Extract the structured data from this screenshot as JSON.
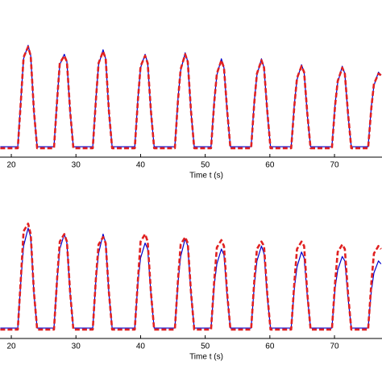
{
  "chart_data": [
    {
      "type": "line",
      "xlabel": "Time t (s)",
      "x": [
        18.3,
        21.0,
        21.5,
        21.9,
        22.6,
        23.0,
        23.5,
        24.0,
        26.6,
        27.1,
        27.5,
        28.2,
        28.6,
        29.1,
        29.6,
        32.6,
        33.1,
        33.5,
        34.2,
        34.6,
        35.1,
        35.6,
        39.1,
        39.6,
        40.0,
        40.7,
        41.1,
        41.6,
        42.1,
        45.3,
        45.8,
        46.2,
        46.9,
        47.3,
        47.8,
        48.3,
        50.9,
        51.4,
        51.8,
        52.5,
        52.9,
        53.4,
        53.9,
        57.1,
        57.6,
        58.0,
        58.7,
        59.1,
        59.6,
        60.1,
        63.3,
        63.8,
        64.2,
        64.9,
        65.3,
        65.8,
        66.3,
        69.6,
        70.1,
        70.5,
        71.2,
        71.6,
        72.1,
        72.6,
        75.2,
        75.7,
        76.1,
        76.8,
        77.2
      ],
      "series": [
        {
          "color": "#0000cc",
          "dash": false,
          "values": [
            0.07,
            0.07,
            0.4,
            0.66,
            0.75,
            0.68,
            0.3,
            0.07,
            0.07,
            0.4,
            0.62,
            0.69,
            0.64,
            0.3,
            0.07,
            0.07,
            0.4,
            0.62,
            0.72,
            0.66,
            0.3,
            0.07,
            0.07,
            0.4,
            0.6,
            0.69,
            0.63,
            0.3,
            0.07,
            0.07,
            0.4,
            0.58,
            0.7,
            0.64,
            0.3,
            0.07,
            0.07,
            0.38,
            0.55,
            0.66,
            0.6,
            0.3,
            0.07,
            0.07,
            0.38,
            0.55,
            0.66,
            0.6,
            0.3,
            0.07,
            0.07,
            0.36,
            0.52,
            0.62,
            0.57,
            0.28,
            0.07,
            0.07,
            0.36,
            0.5,
            0.61,
            0.56,
            0.28,
            0.07,
            0.07,
            0.34,
            0.48,
            0.57,
            0.55
          ]
        },
        {
          "color": "#e02020",
          "dash": true,
          "values": [
            0.06,
            0.06,
            0.39,
            0.67,
            0.74,
            0.68,
            0.31,
            0.06,
            0.06,
            0.39,
            0.63,
            0.68,
            0.64,
            0.31,
            0.06,
            0.06,
            0.39,
            0.63,
            0.71,
            0.66,
            0.31,
            0.06,
            0.06,
            0.39,
            0.61,
            0.68,
            0.63,
            0.31,
            0.06,
            0.06,
            0.39,
            0.59,
            0.69,
            0.64,
            0.31,
            0.06,
            0.06,
            0.37,
            0.56,
            0.65,
            0.6,
            0.31,
            0.06,
            0.06,
            0.37,
            0.56,
            0.65,
            0.6,
            0.31,
            0.06,
            0.06,
            0.35,
            0.53,
            0.61,
            0.57,
            0.29,
            0.06,
            0.06,
            0.35,
            0.51,
            0.6,
            0.56,
            0.29,
            0.06,
            0.06,
            0.33,
            0.49,
            0.56,
            0.55
          ]
        }
      ],
      "xlim": [
        18.25,
        77.35
      ],
      "ylim": [
        0,
        1
      ],
      "xticks": [
        20,
        30,
        40,
        50,
        60,
        70
      ],
      "grid": false
    },
    {
      "type": "line",
      "xlabel": "Time t (s)",
      "x": [
        18.3,
        21.0,
        21.5,
        21.9,
        22.6,
        23.0,
        23.5,
        24.0,
        26.6,
        27.1,
        27.5,
        28.2,
        28.6,
        29.1,
        29.6,
        32.6,
        33.1,
        33.5,
        34.2,
        34.6,
        35.1,
        35.6,
        39.1,
        39.6,
        40.0,
        40.7,
        41.1,
        41.6,
        42.1,
        45.3,
        45.8,
        46.2,
        46.9,
        47.3,
        47.8,
        48.3,
        50.9,
        51.4,
        51.8,
        52.5,
        52.9,
        53.4,
        53.9,
        57.1,
        57.6,
        58.0,
        58.7,
        59.1,
        59.6,
        60.1,
        63.3,
        63.8,
        64.2,
        64.9,
        65.3,
        65.8,
        66.3,
        69.6,
        70.1,
        70.5,
        71.2,
        71.6,
        72.1,
        72.6,
        75.2,
        75.7,
        76.1,
        76.8,
        77.2
      ],
      "series": [
        {
          "color": "#0000cc",
          "dash": false,
          "values": [
            0.07,
            0.07,
            0.4,
            0.62,
            0.74,
            0.68,
            0.3,
            0.07,
            0.07,
            0.4,
            0.6,
            0.7,
            0.64,
            0.3,
            0.07,
            0.07,
            0.4,
            0.57,
            0.7,
            0.64,
            0.3,
            0.07,
            0.07,
            0.38,
            0.54,
            0.64,
            0.6,
            0.3,
            0.07,
            0.07,
            0.38,
            0.55,
            0.67,
            0.62,
            0.3,
            0.07,
            0.07,
            0.36,
            0.5,
            0.6,
            0.56,
            0.28,
            0.07,
            0.07,
            0.36,
            0.52,
            0.62,
            0.57,
            0.28,
            0.07,
            0.07,
            0.34,
            0.48,
            0.58,
            0.54,
            0.28,
            0.07,
            0.07,
            0.34,
            0.46,
            0.55,
            0.52,
            0.27,
            0.07,
            0.07,
            0.32,
            0.44,
            0.52,
            0.5
          ]
        },
        {
          "color": "#e02020",
          "dash": true,
          "values": [
            0.06,
            0.06,
            0.42,
            0.72,
            0.77,
            0.7,
            0.31,
            0.06,
            0.06,
            0.41,
            0.65,
            0.7,
            0.65,
            0.31,
            0.06,
            0.06,
            0.41,
            0.63,
            0.68,
            0.64,
            0.31,
            0.06,
            0.06,
            0.4,
            0.65,
            0.7,
            0.65,
            0.31,
            0.06,
            0.06,
            0.4,
            0.63,
            0.68,
            0.64,
            0.31,
            0.06,
            0.06,
            0.39,
            0.61,
            0.66,
            0.62,
            0.3,
            0.06,
            0.06,
            0.39,
            0.6,
            0.65,
            0.62,
            0.3,
            0.06,
            0.06,
            0.38,
            0.6,
            0.65,
            0.62,
            0.3,
            0.06,
            0.06,
            0.38,
            0.58,
            0.63,
            0.6,
            0.3,
            0.06,
            0.06,
            0.37,
            0.57,
            0.62,
            0.6
          ]
        }
      ],
      "xlim": [
        18.25,
        77.35
      ],
      "ylim": [
        0,
        1
      ],
      "xticks": [
        20,
        30,
        40,
        50,
        60,
        70
      ],
      "grid": false
    }
  ]
}
